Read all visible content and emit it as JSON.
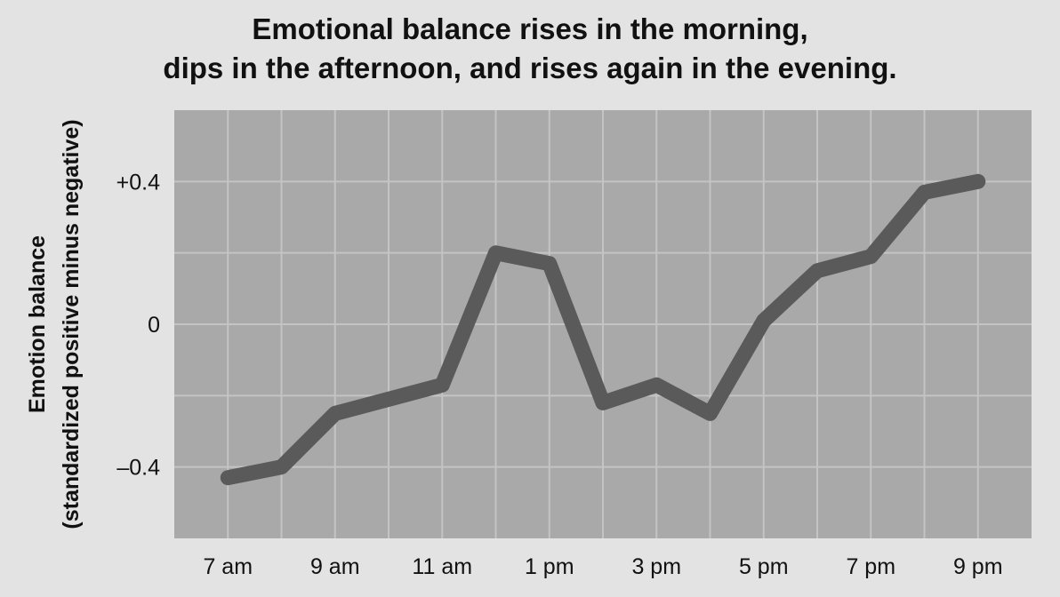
{
  "chart_data": {
    "type": "line",
    "title": [
      "Emotional balance rises in the morning,",
      "dips in the afternoon, and rises again in the evening."
    ],
    "ylabel": [
      "Emotion balance",
      "(standardized positive minus negative)"
    ],
    "xlabel": "",
    "x_tick_labels": [
      "7 am",
      "9 am",
      "11 am",
      "1 pm",
      "3 pm",
      "5 pm",
      "7 pm",
      "9 pm"
    ],
    "x_tick_hours": [
      7,
      9,
      11,
      13,
      15,
      17,
      19,
      21
    ],
    "y_tick_labels": [
      "+0.4",
      "0",
      "–0.4"
    ],
    "y_tick_values": [
      0.4,
      0,
      -0.4
    ],
    "xlim": [
      6,
      22
    ],
    "ylim": [
      -0.6,
      0.6
    ],
    "grid": true,
    "series": [
      {
        "x": [
          7,
          8,
          9,
          10,
          11,
          12,
          13,
          14,
          15,
          16,
          17,
          18,
          19,
          20,
          21
        ],
        "values": [
          -0.43,
          -0.4,
          -0.25,
          -0.21,
          -0.17,
          0.2,
          0.17,
          -0.22,
          -0.17,
          -0.25,
          0.01,
          0.15,
          0.19,
          0.37,
          0.4
        ]
      }
    ],
    "colors": {
      "plot_bg": "#a9a9a9",
      "grid": "#c4c4c4",
      "line": "#5a5a5a",
      "text": "#111111"
    }
  }
}
